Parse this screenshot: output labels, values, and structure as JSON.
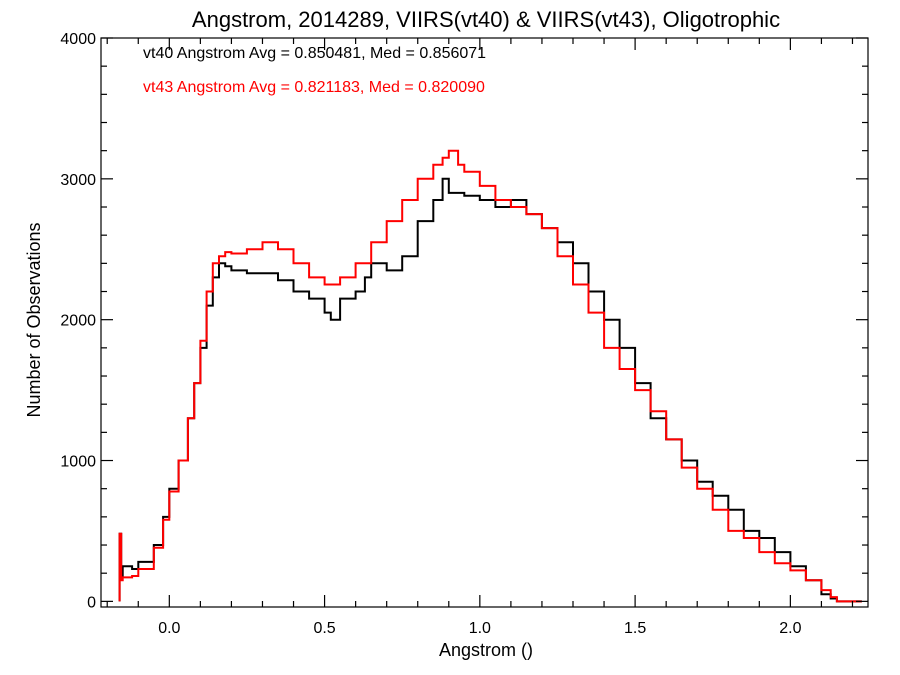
{
  "chart_data": {
    "type": "line",
    "step": true,
    "title": "Angstrom, 2014289, VIIRS(vt40) & VIIRS(vt43), Oligotrophic",
    "xlabel": "Angstrom ()",
    "ylabel": "Number of Observations",
    "xlim": [
      -0.22,
      2.25
    ],
    "ylim": [
      -40,
      4000
    ],
    "xticks": [
      0.0,
      0.5,
      1.0,
      1.5,
      2.0
    ],
    "xtick_labels": [
      "0.0",
      "0.5",
      "1.0",
      "1.5",
      "2.0"
    ],
    "yticks": [
      0,
      1000,
      2000,
      3000,
      4000
    ],
    "ytick_labels": [
      "0",
      "1000",
      "2000",
      "3000",
      "4000"
    ],
    "grid": false,
    "annotations": [
      {
        "text": "vt40 Angstrom Avg = 0.850481, Med = 0.856071",
        "color": "#000000"
      },
      {
        "text": "vt43 Angstrom Avg = 0.821183, Med = 0.820090",
        "color": "#ff0000"
      }
    ],
    "series": [
      {
        "color": "#000000",
        "x": [
          -0.16,
          -0.155,
          -0.15,
          -0.12,
          -0.1,
          -0.05,
          -0.02,
          0.0,
          0.03,
          0.06,
          0.08,
          0.1,
          0.12,
          0.14,
          0.16,
          0.18,
          0.2,
          0.25,
          0.3,
          0.35,
          0.4,
          0.45,
          0.5,
          0.52,
          0.55,
          0.6,
          0.63,
          0.65,
          0.7,
          0.75,
          0.8,
          0.85,
          0.88,
          0.9,
          0.95,
          1.0,
          1.05,
          1.1,
          1.15,
          1.2,
          1.25,
          1.3,
          1.35,
          1.4,
          1.45,
          1.5,
          1.55,
          1.6,
          1.65,
          1.7,
          1.75,
          1.8,
          1.85,
          1.9,
          1.95,
          2.0,
          2.05,
          2.1,
          2.13,
          2.15
        ],
        "y": [
          480,
          180,
          250,
          230,
          280,
          400,
          600,
          800,
          1000,
          1300,
          1550,
          1800,
          2100,
          2300,
          2400,
          2380,
          2350,
          2330,
          2330,
          2280,
          2200,
          2150,
          2050,
          2000,
          2150,
          2200,
          2300,
          2400,
          2350,
          2450,
          2700,
          2850,
          3000,
          2900,
          2880,
          2850,
          2800,
          2850,
          2750,
          2650,
          2550,
          2400,
          2200,
          2000,
          1800,
          1550,
          1300,
          1150,
          1000,
          850,
          750,
          650,
          500,
          450,
          350,
          250,
          150,
          50,
          20,
          0
        ]
      },
      {
        "color": "#ff0000",
        "x": [
          -0.16,
          -0.155,
          -0.15,
          -0.12,
          -0.1,
          -0.05,
          -0.02,
          0.0,
          0.03,
          0.06,
          0.08,
          0.1,
          0.12,
          0.14,
          0.16,
          0.18,
          0.2,
          0.25,
          0.3,
          0.35,
          0.4,
          0.45,
          0.5,
          0.55,
          0.6,
          0.65,
          0.7,
          0.75,
          0.8,
          0.85,
          0.88,
          0.9,
          0.93,
          0.95,
          1.0,
          1.05,
          1.1,
          1.15,
          1.2,
          1.25,
          1.3,
          1.35,
          1.4,
          1.45,
          1.5,
          1.55,
          1.6,
          1.65,
          1.7,
          1.75,
          1.8,
          1.85,
          1.9,
          1.95,
          2.0,
          2.05,
          2.1,
          2.13,
          2.15
        ],
        "y": [
          480,
          150,
          170,
          180,
          230,
          380,
          580,
          780,
          1000,
          1300,
          1550,
          1850,
          2200,
          2400,
          2450,
          2480,
          2470,
          2500,
          2550,
          2500,
          2400,
          2300,
          2250,
          2300,
          2400,
          2550,
          2700,
          2850,
          3000,
          3100,
          3150,
          3200,
          3100,
          3050,
          2950,
          2850,
          2800,
          2750,
          2650,
          2450,
          2250,
          2050,
          1800,
          1650,
          1500,
          1350,
          1150,
          950,
          800,
          650,
          500,
          450,
          350,
          270,
          220,
          150,
          80,
          30,
          0
        ]
      }
    ]
  }
}
